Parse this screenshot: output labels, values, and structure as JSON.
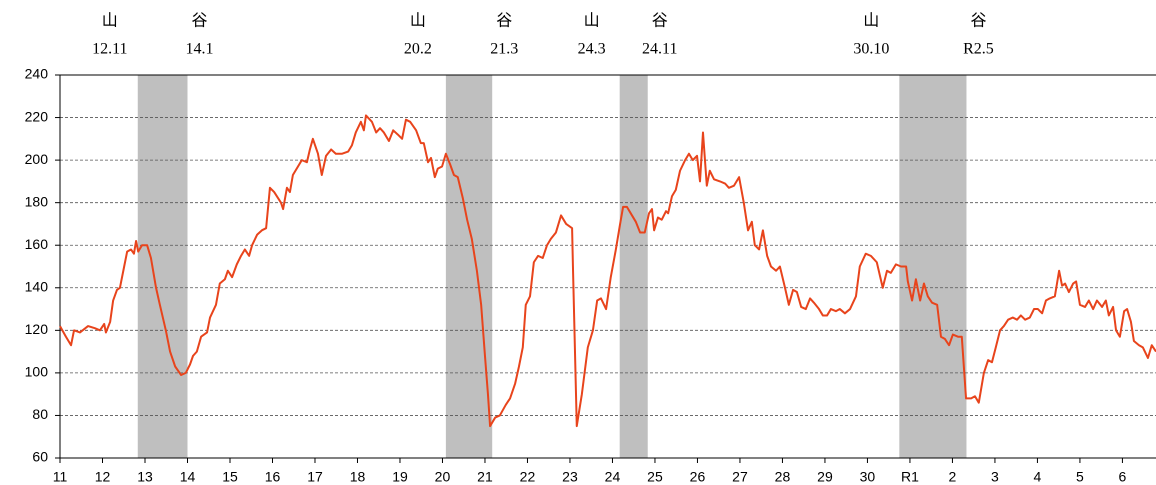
{
  "chart_data": {
    "type": "line",
    "xlim": [
      0,
      25.79
    ],
    "xticks": [
      {
        "value": 0,
        "label": "11"
      },
      {
        "value": 1,
        "label": "12"
      },
      {
        "value": 2,
        "label": "13"
      },
      {
        "value": 3,
        "label": "14"
      },
      {
        "value": 4,
        "label": "15"
      },
      {
        "value": 5,
        "label": "16"
      },
      {
        "value": 6,
        "label": "17"
      },
      {
        "value": 7,
        "label": "18"
      },
      {
        "value": 8,
        "label": "19"
      },
      {
        "value": 9,
        "label": "20"
      },
      {
        "value": 10,
        "label": "21"
      },
      {
        "value": 11,
        "label": "22"
      },
      {
        "value": 12,
        "label": "23"
      },
      {
        "value": 13,
        "label": "24"
      },
      {
        "value": 14,
        "label": "25"
      },
      {
        "value": 15,
        "label": "26"
      },
      {
        "value": 16,
        "label": "27"
      },
      {
        "value": 17,
        "label": "28"
      },
      {
        "value": 18,
        "label": "29"
      },
      {
        "value": 19,
        "label": "30"
      },
      {
        "value": 20,
        "label": "R1"
      },
      {
        "value": 21,
        "label": "2"
      },
      {
        "value": 22,
        "label": "3"
      },
      {
        "value": 23,
        "label": "4"
      },
      {
        "value": 24,
        "label": "5"
      },
      {
        "value": 25,
        "label": "6"
      }
    ],
    "ylim": [
      60,
      240
    ],
    "yticks": [
      60,
      80,
      100,
      120,
      140,
      160,
      180,
      200,
      220,
      240
    ],
    "grid": true,
    "periods": [
      {
        "from": 1.83,
        "to": 3.0,
        "peak": "山",
        "peak_date": "12.11",
        "trough": "谷",
        "trough_date": "14.1"
      },
      {
        "from": 9.08,
        "to": 10.17,
        "peak": "山",
        "peak_date": "20.2",
        "trough": "谷",
        "trough_date": "21.3"
      },
      {
        "from": 13.17,
        "to": 13.83,
        "peak": "山",
        "peak_date": "24.3",
        "trough": "谷",
        "trough_date": "24.11"
      },
      {
        "from": 19.75,
        "to": 21.33,
        "peak": "山",
        "peak_date": "30.10",
        "trough": "谷",
        "trough_date": "R2.5"
      }
    ],
    "period_color": "#bfbfbf",
    "series": [
      {
        "color": "#e8441c",
        "x": [
          0,
          0.14,
          0.26,
          0.33,
          0.47,
          0.66,
          0.82,
          0.94,
          1.04,
          1.08,
          1.18,
          1.25,
          1.34,
          1.41,
          1.51,
          1.58,
          1.67,
          1.74,
          1.79,
          1.84,
          1.93,
          2.05,
          2.14,
          2.26,
          2.35,
          2.49,
          2.59,
          2.71,
          2.85,
          2.96,
          3.06,
          3.13,
          3.22,
          3.32,
          3.46,
          3.53,
          3.67,
          3.76,
          3.88,
          3.95,
          4.05,
          4.16,
          4.26,
          4.35,
          4.45,
          4.52,
          4.64,
          4.75,
          4.85,
          4.94,
          5.04,
          5.2,
          5.25,
          5.34,
          5.41,
          5.48,
          5.6,
          5.69,
          5.81,
          5.88,
          5.95,
          6.07,
          6.16,
          6.26,
          6.38,
          6.49,
          6.64,
          6.78,
          6.87,
          6.96,
          7.08,
          7.15,
          7.2,
          7.34,
          7.44,
          7.53,
          7.62,
          7.74,
          7.84,
          7.95,
          8.05,
          8.14,
          8.24,
          8.38,
          8.49,
          8.56,
          8.66,
          8.73,
          8.82,
          8.89,
          8.99,
          9.08,
          9.18,
          9.27,
          9.36,
          9.48,
          9.58,
          9.69,
          9.81,
          9.91,
          10,
          10.07,
          10.12,
          10.24,
          10.35,
          10.49,
          10.59,
          10.71,
          10.8,
          10.89,
          10.96,
          11.06,
          11.15,
          11.25,
          11.36,
          11.46,
          11.55,
          11.67,
          11.79,
          11.91,
          12.05,
          12.07,
          12.16,
          12.28,
          12.42,
          12.54,
          12.64,
          12.73,
          12.85,
          12.96,
          13.08,
          13.18,
          13.25,
          13.34,
          13.46,
          13.55,
          13.65,
          13.76,
          13.86,
          13.93,
          13.98,
          14.07,
          14.16,
          14.26,
          14.31,
          14.4,
          14.49,
          14.59,
          14.71,
          14.8,
          14.89,
          14.99,
          15.06,
          15.13,
          15.22,
          15.29,
          15.39,
          15.53,
          15.65,
          15.74,
          15.86,
          15.98,
          16.09,
          16.19,
          16.28,
          16.35,
          16.45,
          16.54,
          16.64,
          16.73,
          16.85,
          16.94,
          17.06,
          17.15,
          17.25,
          17.34,
          17.44,
          17.55,
          17.65,
          17.74,
          17.86,
          17.95,
          18.05,
          18.14,
          18.26,
          18.35,
          18.47,
          18.59,
          18.73,
          18.82,
          18.96,
          19.08,
          19.22,
          19.36,
          19.46,
          19.55,
          19.67,
          19.79,
          19.91,
          19.95,
          20.05,
          20.14,
          20.24,
          20.33,
          20.42,
          20.52,
          20.64,
          20.73,
          20.82,
          20.92,
          21.01,
          21.13,
          21.22,
          21.32,
          21.44,
          21.53,
          21.62,
          21.74,
          21.84,
          21.93,
          22.02,
          22.12,
          22.21,
          22.31,
          22.42,
          22.52,
          22.61,
          22.71,
          22.82,
          22.92,
          23.01,
          23.11,
          23.2,
          23.29,
          23.41,
          23.51,
          23.58,
          23.65,
          23.74,
          23.84,
          23.91,
          24,
          24.12,
          24.21,
          24.31,
          24.4,
          24.52,
          24.61,
          24.68,
          24.78,
          24.85,
          24.94,
          25.04,
          25.11,
          25.2,
          25.27,
          25.39,
          25.48,
          25.6,
          25.69,
          25.79
        ],
        "values": [
          122,
          117,
          113,
          120,
          119,
          122,
          121,
          120,
          123,
          119,
          124,
          134,
          139,
          140,
          150,
          157,
          158,
          156,
          162,
          157,
          160,
          160,
          154,
          140,
          132,
          120,
          110,
          103,
          99,
          100,
          104,
          108,
          110,
          117,
          119,
          126,
          132,
          142,
          144,
          148,
          145,
          151,
          155,
          158,
          155,
          160,
          165,
          167,
          168,
          187,
          185,
          180,
          177,
          187,
          185,
          193,
          197,
          200,
          199,
          205,
          210,
          203,
          193,
          202,
          205,
          203,
          203,
          204,
          207,
          213,
          218,
          214,
          221,
          218,
          213,
          215,
          213,
          209,
          214,
          212,
          210,
          219,
          218,
          214,
          208,
          208,
          199,
          201,
          192,
          196,
          197,
          203,
          198,
          193,
          192,
          182,
          172,
          163,
          148,
          132,
          108,
          90,
          75,
          79,
          80,
          85,
          88,
          95,
          103,
          112,
          132,
          136,
          152,
          155,
          154,
          160,
          163,
          166,
          174,
          170,
          168,
          150,
          75,
          90,
          112,
          120,
          134,
          135,
          130,
          145,
          158,
          170,
          178,
          178,
          174,
          171,
          166,
          166,
          175,
          177,
          167,
          173,
          172,
          176,
          175,
          183,
          186,
          195,
          200,
          203,
          200,
          202,
          190,
          213,
          188,
          195,
          191,
          190,
          189,
          187,
          188,
          192,
          180,
          167,
          171,
          160,
          158,
          167,
          155,
          150,
          148,
          150,
          140,
          132,
          139,
          138,
          131,
          130,
          135,
          133,
          130,
          127,
          127,
          130,
          129,
          130,
          128,
          130,
          136,
          150,
          156,
          155,
          152,
          140,
          148,
          147,
          151,
          150,
          150,
          143,
          134,
          144,
          134,
          142,
          136,
          133,
          132,
          117,
          116,
          113,
          118,
          117,
          117,
          88,
          88,
          89,
          86,
          100,
          106,
          105,
          112,
          120,
          122,
          125,
          126,
          125,
          127,
          125,
          126,
          130,
          130,
          128,
          134,
          135,
          136,
          148,
          141,
          142,
          138,
          142,
          143,
          132,
          131,
          134,
          130,
          134,
          131,
          134,
          127,
          131,
          120,
          117,
          129,
          130,
          124,
          115,
          113,
          112,
          107,
          113,
          110
        ]
      }
    ]
  }
}
